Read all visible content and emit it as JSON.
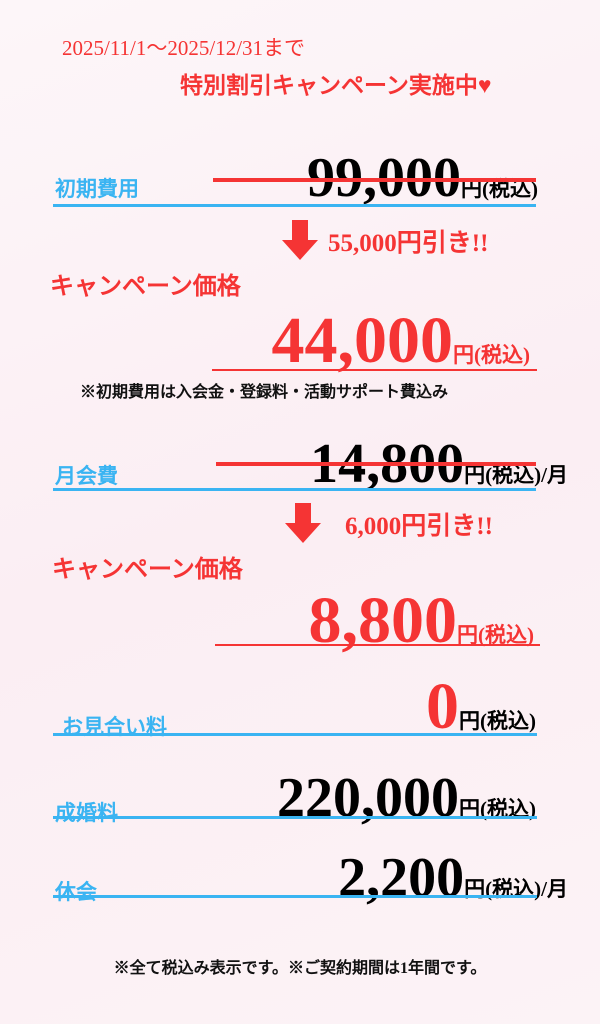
{
  "header": {
    "period": "2025/11/1～2025/12/31まで",
    "campaign": "特別割引キャンペーン実施中♥"
  },
  "initial": {
    "label": "初期費用",
    "regular_price": "99,000",
    "unit": "円(税込)",
    "discount": "55,000円引き!!",
    "campaign_label": "キャンペーン価格",
    "campaign_price": "44,000",
    "campaign_unit": "円(税込)",
    "note": "※初期費用は入会金・登録料・活動サポート費込み"
  },
  "monthly": {
    "label": "月会費",
    "regular_price": "14,800",
    "unit": "円(税込)/月",
    "discount": "6,000円引き!!",
    "campaign_label": "キャンペーン価格",
    "campaign_price": "8,800",
    "campaign_unit": "円(税込)"
  },
  "meeting": {
    "label": "お見合い料",
    "price": "0",
    "unit": "円(税込)"
  },
  "marriage": {
    "label": "成婚料",
    "price": "220,000",
    "unit": "円(税込)"
  },
  "pause": {
    "label": "休会",
    "price": "2,200",
    "unit": "円(税込)/月"
  },
  "footer": "※全て税込み表示です。※ご契約期間は1年間です。",
  "colors": {
    "accent_red": "#f53434",
    "label_blue": "#3ab4f2",
    "background": "#fcf1f5"
  },
  "icons": {
    "discount_arrow": "arrow-down-icon"
  }
}
